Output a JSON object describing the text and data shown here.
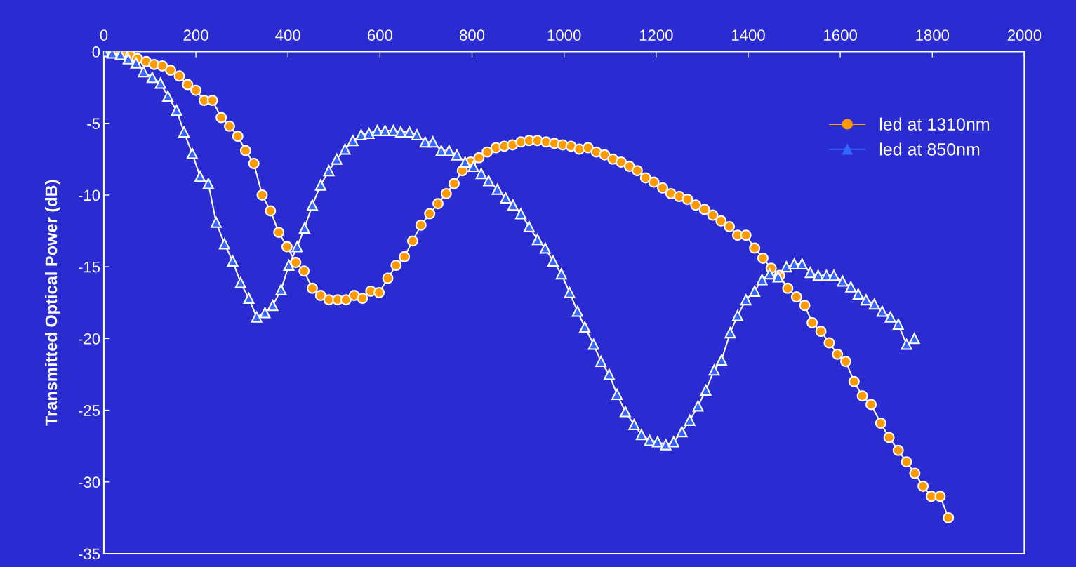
{
  "chart_data": {
    "type": "line",
    "ylabel": "Transmitted Optical Power (dB)",
    "xlim": [
      0,
      2000
    ],
    "xticks": [
      0,
      200,
      400,
      600,
      800,
      1000,
      1200,
      1400,
      1600,
      1800,
      2000
    ],
    "ylim": [
      -35,
      0
    ],
    "yticks": [
      0,
      -5,
      -10,
      -15,
      -20,
      -25,
      -30,
      -35
    ],
    "grid": false,
    "legend": "top right",
    "series": [
      {
        "name": "led at 1310nm",
        "color": "#ff9900",
        "marker": "circle",
        "x": [
          3,
          21,
          39,
          58,
          73,
          92,
          109,
          127,
          145,
          164,
          182,
          200,
          218,
          236,
          255,
          273,
          291,
          308,
          326,
          344,
          362,
          380,
          398,
          417,
          435,
          453,
          471,
          489,
          508,
          526,
          544,
          562,
          580,
          598,
          617,
          635,
          653,
          671,
          689,
          708,
          726,
          744,
          761,
          779,
          797,
          815,
          833,
          852,
          870,
          888,
          906,
          924,
          942,
          961,
          979,
          997,
          1015,
          1033,
          1052,
          1070,
          1088,
          1106,
          1124,
          1142,
          1159,
          1177,
          1195,
          1214,
          1232,
          1250,
          1268,
          1286,
          1305,
          1323,
          1341,
          1359,
          1377,
          1395,
          1414,
          1432,
          1450,
          1468,
          1486,
          1505,
          1523,
          1539,
          1558,
          1576,
          1594,
          1612,
          1630,
          1648,
          1667,
          1688,
          1706,
          1726,
          1744,
          1762,
          1780,
          1798,
          1817,
          1835
        ],
        "values": [
          0,
          0,
          -0.1,
          -0.3,
          -0.5,
          -0.7,
          -0.9,
          -1.0,
          -1.3,
          -1.7,
          -2.3,
          -2.7,
          -3.4,
          -3.4,
          -4.6,
          -5.2,
          -5.9,
          -6.9,
          -7.8,
          -10.0,
          -11.1,
          -12.6,
          -13.6,
          -14.7,
          -15.3,
          -16.5,
          -17.0,
          -17.3,
          -17.3,
          -17.3,
          -17.0,
          -17.2,
          -16.7,
          -16.8,
          -15.8,
          -14.9,
          -14.3,
          -13.2,
          -12.1,
          -11.3,
          -10.6,
          -9.9,
          -9.2,
          -8.3,
          -7.7,
          -7.4,
          -7.0,
          -6.7,
          -6.6,
          -6.5,
          -6.3,
          -6.2,
          -6.2,
          -6.3,
          -6.4,
          -6.5,
          -6.6,
          -6.8,
          -6.7,
          -7.0,
          -7.2,
          -7.5,
          -7.7,
          -8.0,
          -8.3,
          -8.8,
          -9.1,
          -9.5,
          -9.9,
          -10.1,
          -10.3,
          -10.7,
          -11.0,
          -11.4,
          -11.8,
          -12.2,
          -12.8,
          -12.8,
          -13.7,
          -14.4,
          -15.1,
          -15.6,
          -16.5,
          -17.1,
          -17.7,
          -18.9,
          -19.5,
          -20.3,
          -21.1,
          -21.6,
          -23.0,
          -24.0,
          -24.6,
          -25.9,
          -26.9,
          -27.8,
          -28.6,
          -29.4,
          -30.3,
          -31.0,
          -31.0,
          -32.5
        ]
      },
      {
        "name": "led at 850nm",
        "color": "#3366ff",
        "marker": "triangle",
        "x": [
          0,
          18,
          36,
          53,
          70,
          86,
          105,
          123,
          139,
          158,
          174,
          192,
          209,
          227,
          244,
          262,
          280,
          297,
          315,
          332,
          350,
          367,
          385,
          402,
          420,
          436,
          453,
          471,
          489,
          506,
          524,
          541,
          559,
          576,
          594,
          611,
          629,
          645,
          664,
          680,
          698,
          715,
          733,
          750,
          767,
          785,
          803,
          820,
          836,
          855,
          873,
          889,
          906,
          924,
          942,
          959,
          976,
          994,
          1012,
          1029,
          1045,
          1064,
          1080,
          1098,
          1115,
          1133,
          1152,
          1168,
          1186,
          1203,
          1221,
          1238,
          1256,
          1273,
          1291,
          1308,
          1326,
          1342,
          1361,
          1377,
          1395,
          1414,
          1430,
          1447,
          1465,
          1483,
          1500,
          1517,
          1535,
          1552,
          1570,
          1586,
          1605,
          1623,
          1639,
          1656,
          1674,
          1691,
          1709,
          1726,
          1744,
          1761
        ],
        "values": [
          0,
          -0.1,
          -0.2,
          -0.5,
          -0.8,
          -1.4,
          -1.8,
          -2.2,
          -3.1,
          -4.1,
          -5.6,
          -7.1,
          -8.7,
          -9.2,
          -11.9,
          -13.4,
          -14.6,
          -16.1,
          -17.2,
          -18.5,
          -18.2,
          -17.7,
          -16.6,
          -14.9,
          -13.6,
          -12.3,
          -10.7,
          -9.3,
          -8.3,
          -7.5,
          -6.8,
          -6.2,
          -5.8,
          -5.7,
          -5.5,
          -5.5,
          -5.5,
          -5.6,
          -5.6,
          -5.8,
          -6.3,
          -6.3,
          -6.9,
          -6.9,
          -7.2,
          -7.7,
          -8.0,
          -8.5,
          -9.0,
          -9.6,
          -10.2,
          -10.7,
          -11.3,
          -12.2,
          -13.1,
          -13.7,
          -14.6,
          -15.5,
          -16.8,
          -18.1,
          -19.2,
          -20.4,
          -21.6,
          -22.5,
          -23.9,
          -25.1,
          -26.0,
          -26.7,
          -27.1,
          -27.2,
          -27.4,
          -27.2,
          -26.5,
          -25.7,
          -24.7,
          -23.6,
          -22.2,
          -21.5,
          -19.6,
          -18.4,
          -17.3,
          -16.7,
          -15.9,
          -15.5,
          -15.7,
          -15.0,
          -14.8,
          -14.8,
          -15.4,
          -15.6,
          -15.6,
          -15.6,
          -16.0,
          -16.4,
          -16.9,
          -17.3,
          -17.6,
          -18.1,
          -18.5,
          -19.0,
          -20.4,
          -20.0
        ]
      }
    ]
  }
}
